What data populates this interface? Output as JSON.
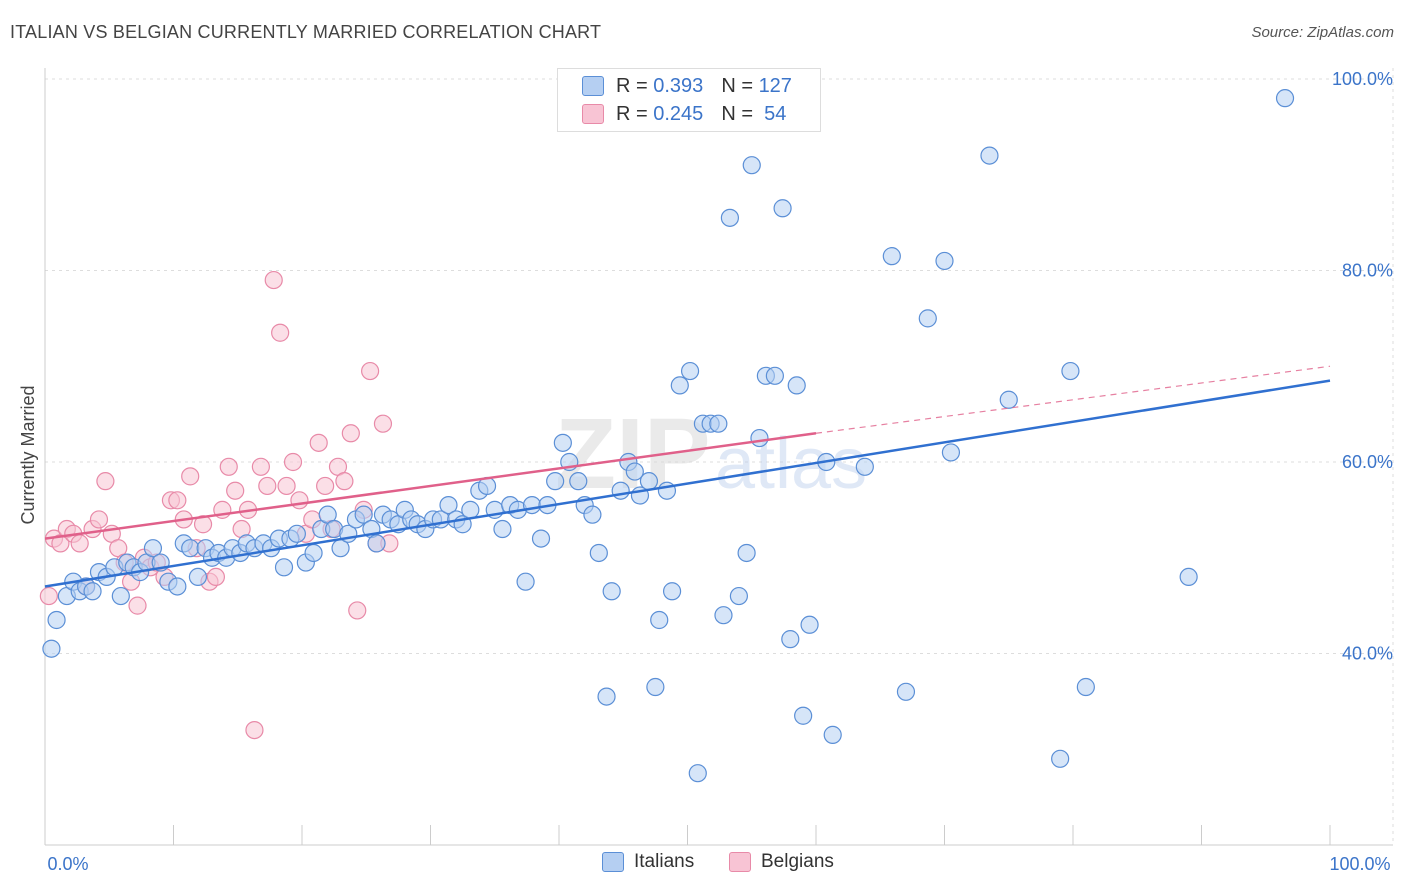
{
  "title": "ITALIAN VS BELGIAN CURRENTLY MARRIED CORRELATION CHART",
  "source": "Source: ZipAtlas.com",
  "watermark": {
    "part1": "ZIP",
    "part2": "atlas"
  },
  "legend": {
    "rows": [
      {
        "r_label": "R = ",
        "r_value": "0.393",
        "n_label": "N = ",
        "n_value": "127"
      },
      {
        "r_label": "R = ",
        "r_value": "0.245",
        "n_label": "N = ",
        "n_value": " 54"
      }
    ]
  },
  "colors": {
    "italians_fill": "#b5cff2",
    "italians_stroke": "#5b8fd6",
    "italians_line": "#3070d0",
    "belgians_fill": "#f8c4d4",
    "belgians_stroke": "#e88aa8",
    "belgians_line": "#e0608a",
    "axis_label": "#3b74c9",
    "grid": "#dddddd"
  },
  "chart_data": {
    "type": "scatter",
    "title": "ITALIAN VS BELGIAN CURRENTLY MARRIED CORRELATION CHART",
    "xlabel": "",
    "ylabel": "Currently Married",
    "xlim": [
      0,
      100
    ],
    "ylim": [
      20,
      100
    ],
    "x_tick_labels": [
      "0.0%",
      "100.0%"
    ],
    "y_tick_labels": [
      "40.0%",
      "60.0%",
      "80.0%",
      "100.0%"
    ],
    "y_ticks": [
      40,
      60,
      80,
      100
    ],
    "grid": true,
    "legend_position": "bottom",
    "series": [
      {
        "name": "Italians",
        "r": 0.393,
        "n": 127,
        "trend": {
          "x": [
            0,
            100
          ],
          "y": [
            47.0,
            68.5
          ]
        },
        "points": [
          [
            0.5,
            40.5
          ],
          [
            0.9,
            43.5
          ],
          [
            1.7,
            46
          ],
          [
            2.2,
            47.5
          ],
          [
            2.7,
            46.5
          ],
          [
            3.2,
            47
          ],
          [
            3.7,
            46.5
          ],
          [
            4.2,
            48.5
          ],
          [
            4.8,
            48
          ],
          [
            5.4,
            49
          ],
          [
            5.9,
            46
          ],
          [
            6.4,
            49.5
          ],
          [
            6.9,
            49
          ],
          [
            7.4,
            48.5
          ],
          [
            7.9,
            49.5
          ],
          [
            8.4,
            51
          ],
          [
            9.0,
            49.5
          ],
          [
            9.6,
            47.5
          ],
          [
            10.3,
            47
          ],
          [
            10.8,
            51.5
          ],
          [
            11.3,
            51
          ],
          [
            11.9,
            48
          ],
          [
            12.5,
            51
          ],
          [
            13.0,
            50
          ],
          [
            13.5,
            50.5
          ],
          [
            14.1,
            50
          ],
          [
            14.6,
            51
          ],
          [
            15.2,
            50.5
          ],
          [
            15.7,
            51.5
          ],
          [
            16.3,
            51
          ],
          [
            17.0,
            51.5
          ],
          [
            17.6,
            51
          ],
          [
            18.2,
            52
          ],
          [
            18.6,
            49
          ],
          [
            19.1,
            52
          ],
          [
            19.6,
            52.5
          ],
          [
            20.3,
            49.5
          ],
          [
            20.9,
            50.5
          ],
          [
            21.5,
            53
          ],
          [
            22.0,
            54.5
          ],
          [
            22.5,
            53
          ],
          [
            23.0,
            51
          ],
          [
            23.6,
            52.5
          ],
          [
            24.2,
            54
          ],
          [
            24.8,
            54.5
          ],
          [
            25.4,
            53
          ],
          [
            25.8,
            51.5
          ],
          [
            26.3,
            54.5
          ],
          [
            26.9,
            54
          ],
          [
            27.5,
            53.5
          ],
          [
            28.0,
            55
          ],
          [
            28.5,
            54
          ],
          [
            29.0,
            53.5
          ],
          [
            29.6,
            53
          ],
          [
            30.2,
            54
          ],
          [
            30.8,
            54
          ],
          [
            31.4,
            55.5
          ],
          [
            32.0,
            54
          ],
          [
            32.5,
            53.5
          ],
          [
            33.1,
            55
          ],
          [
            33.8,
            57
          ],
          [
            34.4,
            57.5
          ],
          [
            35.0,
            55
          ],
          [
            35.6,
            53
          ],
          [
            36.2,
            55.5
          ],
          [
            36.8,
            55
          ],
          [
            37.4,
            47.5
          ],
          [
            37.9,
            55.5
          ],
          [
            38.6,
            52
          ],
          [
            39.1,
            55.5
          ],
          [
            39.7,
            58
          ],
          [
            40.3,
            62
          ],
          [
            40.8,
            60
          ],
          [
            41.5,
            58
          ],
          [
            42.0,
            55.5
          ],
          [
            42.6,
            54.5
          ],
          [
            43.1,
            50.5
          ],
          [
            43.7,
            35.5
          ],
          [
            44.1,
            46.5
          ],
          [
            44.8,
            57
          ],
          [
            45.4,
            60
          ],
          [
            45.9,
            59
          ],
          [
            46.3,
            56.5
          ],
          [
            47.0,
            58
          ],
          [
            47.5,
            36.5
          ],
          [
            47.8,
            43.5
          ],
          [
            48.4,
            57
          ],
          [
            48.8,
            46.5
          ],
          [
            49.4,
            68
          ],
          [
            50.2,
            69.5
          ],
          [
            50.8,
            27.5
          ],
          [
            51.2,
            64
          ],
          [
            51.8,
            64
          ],
          [
            52.4,
            64
          ],
          [
            52.8,
            44
          ],
          [
            53.3,
            85.5
          ],
          [
            54.0,
            46
          ],
          [
            54.6,
            50.5
          ],
          [
            55.0,
            91
          ],
          [
            55.6,
            62.5
          ],
          [
            56.1,
            69
          ],
          [
            56.8,
            69
          ],
          [
            57.4,
            86.5
          ],
          [
            58.0,
            41.5
          ],
          [
            58.5,
            68
          ],
          [
            59.0,
            33.5
          ],
          [
            59.5,
            43
          ],
          [
            60.8,
            60
          ],
          [
            61.3,
            31.5
          ],
          [
            63.8,
            59.5
          ],
          [
            65.9,
            81.5
          ],
          [
            67.0,
            36
          ],
          [
            68.7,
            75
          ],
          [
            70.0,
            81
          ],
          [
            70.5,
            61
          ],
          [
            73.5,
            92
          ],
          [
            75.0,
            66.5
          ],
          [
            79.0,
            29
          ],
          [
            79.8,
            69.5
          ],
          [
            81.0,
            36.5
          ],
          [
            89.0,
            48
          ],
          [
            96.5,
            98
          ]
        ]
      },
      {
        "name": "Belgians",
        "r": 0.245,
        "n": 54,
        "trend": {
          "x": [
            0,
            60
          ],
          "y": [
            52.0,
            63.0
          ]
        },
        "trend_dashed": {
          "x": [
            60,
            100
          ],
          "y": [
            63.0,
            70.0
          ]
        },
        "points": [
          [
            0.3,
            46
          ],
          [
            0.7,
            52
          ],
          [
            1.2,
            51.5
          ],
          [
            1.7,
            53
          ],
          [
            2.2,
            52.5
          ],
          [
            2.7,
            51.5
          ],
          [
            3.2,
            47
          ],
          [
            3.7,
            53
          ],
          [
            4.2,
            54
          ],
          [
            4.7,
            58
          ],
          [
            5.2,
            52.5
          ],
          [
            5.7,
            51
          ],
          [
            6.2,
            49.5
          ],
          [
            6.7,
            47.5
          ],
          [
            7.2,
            45
          ],
          [
            7.7,
            50
          ],
          [
            8.2,
            49
          ],
          [
            8.7,
            49.5
          ],
          [
            9.3,
            48
          ],
          [
            9.8,
            56
          ],
          [
            10.3,
            56
          ],
          [
            10.8,
            54
          ],
          [
            11.3,
            58.5
          ],
          [
            11.8,
            51
          ],
          [
            12.3,
            53.5
          ],
          [
            12.8,
            47.5
          ],
          [
            13.3,
            48
          ],
          [
            13.8,
            55
          ],
          [
            14.3,
            59.5
          ],
          [
            14.8,
            57
          ],
          [
            15.3,
            53
          ],
          [
            15.8,
            55
          ],
          [
            16.3,
            32
          ],
          [
            16.8,
            59.5
          ],
          [
            17.3,
            57.5
          ],
          [
            17.8,
            79
          ],
          [
            18.3,
            73.5
          ],
          [
            18.8,
            57.5
          ],
          [
            19.3,
            60
          ],
          [
            19.8,
            56
          ],
          [
            20.3,
            52.5
          ],
          [
            20.8,
            54
          ],
          [
            21.3,
            62
          ],
          [
            21.8,
            57.5
          ],
          [
            22.3,
            53
          ],
          [
            22.8,
            59.5
          ],
          [
            23.3,
            58
          ],
          [
            23.8,
            63
          ],
          [
            24.3,
            44.5
          ],
          [
            24.8,
            55
          ],
          [
            25.3,
            69.5
          ],
          [
            25.8,
            51.5
          ],
          [
            26.3,
            64
          ],
          [
            26.8,
            51.5
          ]
        ]
      }
    ]
  },
  "bottom_legend": [
    {
      "name": "Italians"
    },
    {
      "name": "Belgians"
    }
  ]
}
